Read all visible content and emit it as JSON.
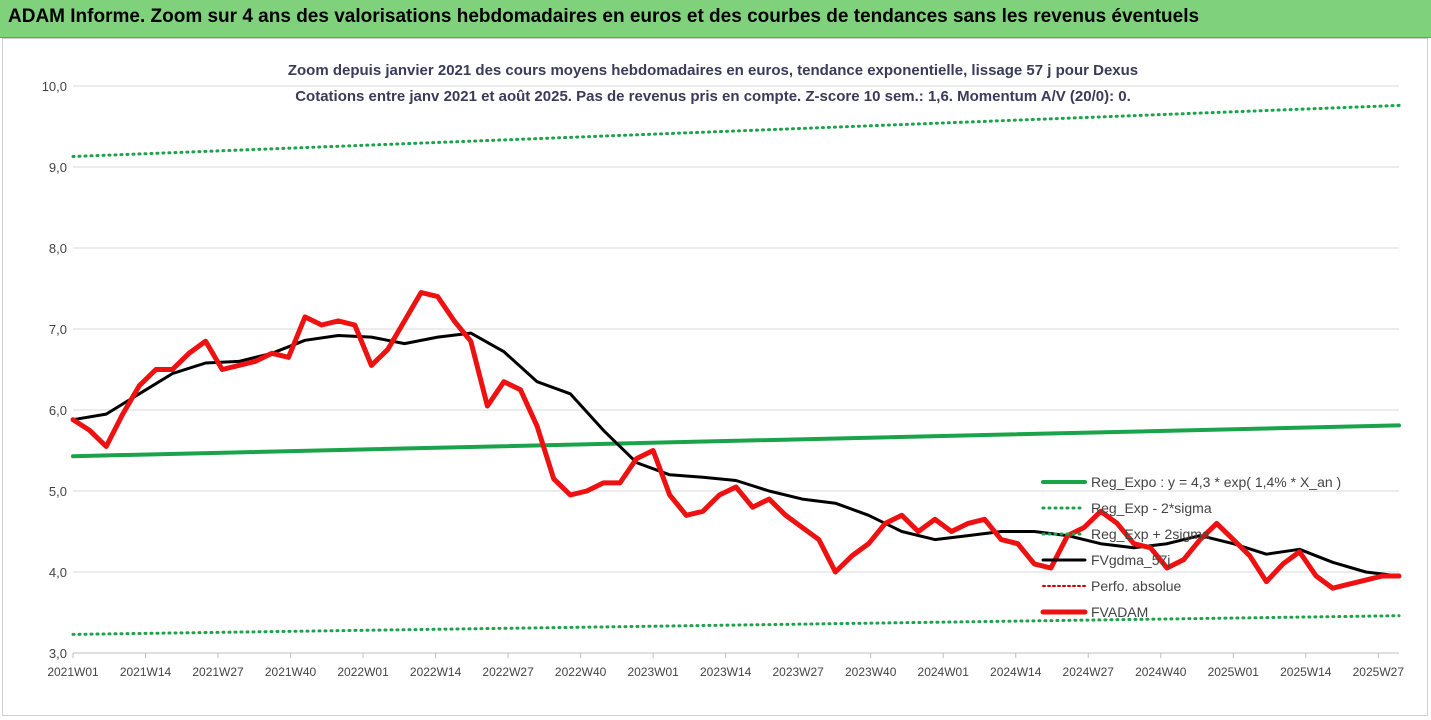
{
  "banner": {
    "title": "ADAM Informe. Zoom sur 4 ans des valorisations hebdomadaires en euros et des courbes de tendances sans les revenus éventuels",
    "background": "#7fd17b"
  },
  "chart_data": {
    "type": "line",
    "title_line1": "Zoom depuis janvier 2021 des cours moyens hebdomadaires en euros, tendance exponentielle, lissage 57 j pour Dexus",
    "title_line2": "Cotations entre janv 2021 et août 2025.  Pas de revenus pris en compte. Z-score 10 sem.: 1,6. Momentum A/V (20/0): 0.",
    "xlabel": "",
    "ylabel": "",
    "ylim": [
      3.0,
      10.0
    ],
    "y_ticks": [
      "3,0",
      "4,0",
      "5,0",
      "6,0",
      "7,0",
      "8,0",
      "9,0",
      "10,0"
    ],
    "x_ticks": [
      "2021W01",
      "2021W14",
      "2021W27",
      "2021W40",
      "2022W01",
      "2022W14",
      "2022W27",
      "2022W40",
      "2023W01",
      "2023W14",
      "2023W27",
      "2023W40",
      "2024W01",
      "2024W14",
      "2024W27",
      "2024W40",
      "2025W01",
      "2025W14",
      "2025W27"
    ],
    "grid": "horizontal",
    "legend_position": "right",
    "colors": {
      "trend": "#1aa34a",
      "bands": "#1aa34a",
      "smooth": "#000000",
      "perf": "#cc0000",
      "price": "#ee1111"
    },
    "series": [
      {
        "name": "Reg_Expo : y = 4,3 * exp( 1,4% *  X_an )",
        "style": "solid",
        "x": [
          0,
          240
        ],
        "values": [
          5.43,
          5.81
        ]
      },
      {
        "name": "Reg_Exp - 2*sigma",
        "style": "dotted",
        "x": [
          0,
          240
        ],
        "values": [
          3.23,
          3.46
        ]
      },
      {
        "name": "Reg_Exp + 2sigma",
        "style": "dotted",
        "x": [
          0,
          240
        ],
        "values": [
          9.13,
          9.76
        ]
      },
      {
        "name": "FVgdma_57j",
        "style": "solid",
        "x": [
          0,
          6,
          12,
          18,
          24,
          30,
          36,
          42,
          48,
          54,
          60,
          66,
          72,
          78,
          84,
          90,
          96,
          102,
          108,
          114,
          120,
          126,
          132,
          138,
          144,
          150,
          156,
          162,
          168,
          174,
          180,
          186,
          192,
          198,
          204,
          210,
          216,
          222,
          228,
          234,
          240
        ],
        "values": [
          5.88,
          5.95,
          6.2,
          6.45,
          6.58,
          6.6,
          6.7,
          6.86,
          6.92,
          6.9,
          6.82,
          6.9,
          6.95,
          6.72,
          6.35,
          6.2,
          5.75,
          5.35,
          5.2,
          5.17,
          5.13,
          5.0,
          4.9,
          4.85,
          4.7,
          4.5,
          4.4,
          4.45,
          4.5,
          4.5,
          4.45,
          4.35,
          4.3,
          4.35,
          4.45,
          4.35,
          4.22,
          4.28,
          4.12,
          4.0,
          3.95
        ]
      },
      {
        "name": "Perfo. absolue",
        "style": "dotted",
        "x": [],
        "values": []
      },
      {
        "name": "FVADAM",
        "style": "thick",
        "x": [
          0,
          3,
          6,
          9,
          12,
          15,
          18,
          21,
          24,
          27,
          30,
          33,
          36,
          39,
          42,
          45,
          48,
          51,
          54,
          57,
          60,
          63,
          66,
          69,
          72,
          75,
          78,
          81,
          84,
          87,
          90,
          93,
          96,
          99,
          102,
          105,
          108,
          111,
          114,
          117,
          120,
          123,
          126,
          129,
          132,
          135,
          138,
          141,
          144,
          147,
          150,
          153,
          156,
          159,
          162,
          165,
          168,
          171,
          174,
          177,
          180,
          183,
          186,
          189,
          192,
          195,
          198,
          201,
          204,
          207,
          210,
          213,
          216,
          219,
          222,
          225,
          228,
          231,
          234,
          237,
          240
        ],
        "values": [
          5.88,
          5.75,
          5.55,
          5.95,
          6.3,
          6.5,
          6.5,
          6.7,
          6.85,
          6.5,
          6.55,
          6.6,
          6.7,
          6.65,
          7.15,
          7.05,
          7.1,
          7.05,
          6.55,
          6.75,
          7.1,
          7.45,
          7.4,
          7.1,
          6.85,
          6.05,
          6.35,
          6.25,
          5.8,
          5.15,
          4.95,
          5.0,
          5.1,
          5.1,
          5.4,
          5.5,
          4.95,
          4.7,
          4.75,
          4.95,
          5.05,
          4.8,
          4.9,
          4.7,
          4.55,
          4.4,
          4.0,
          4.2,
          4.35,
          4.6,
          4.7,
          4.5,
          4.65,
          4.5,
          4.6,
          4.65,
          4.4,
          4.35,
          4.1,
          4.05,
          4.45,
          4.55,
          4.75,
          4.6,
          4.35,
          4.3,
          4.05,
          4.15,
          4.4,
          4.6,
          4.4,
          4.2,
          3.88,
          4.1,
          4.25,
          3.95,
          3.8,
          3.85,
          3.9,
          3.95,
          3.95
        ]
      }
    ]
  }
}
